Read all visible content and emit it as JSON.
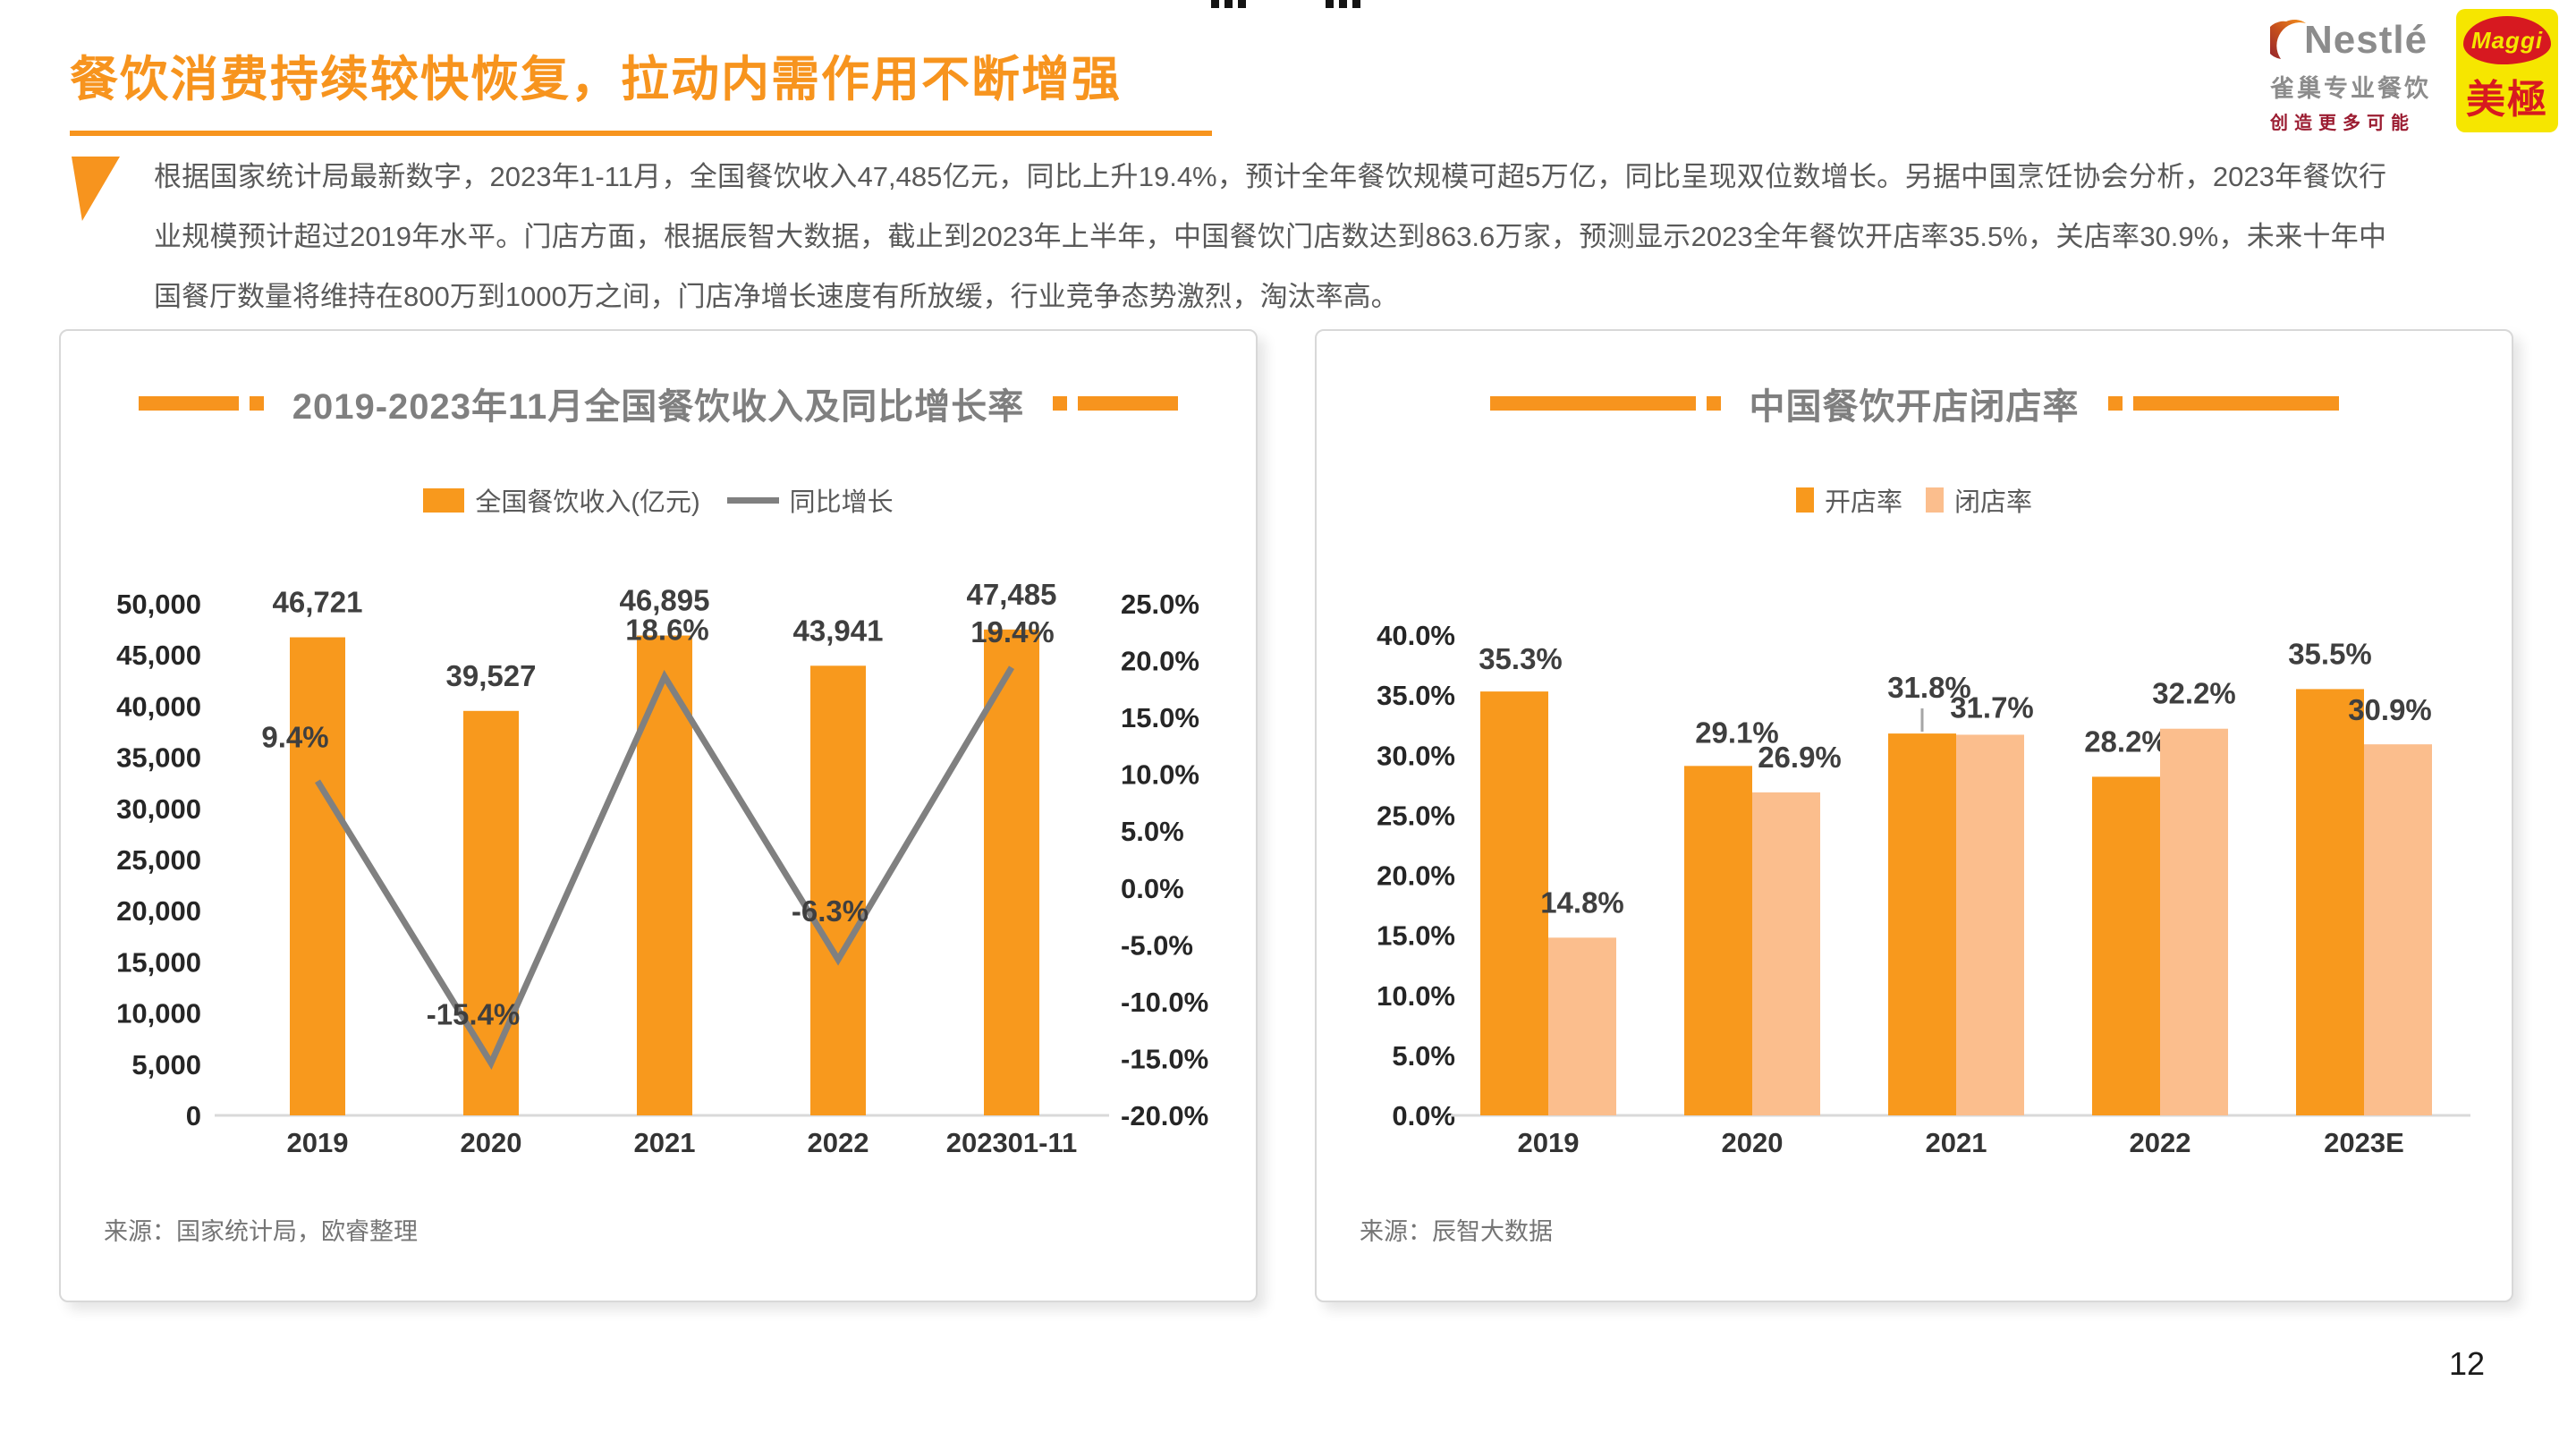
{
  "slide": {
    "title": "餐饮消费持续较快恢复，拉动内需作用不断增强",
    "body_text": "根据国家统计局最新数字，2023年1-11月，全国餐饮收入47,485亿元，同比上升19.4%，预计全年餐饮规模可超5万亿，同比呈现双位数增长。另据中国烹饪协会分析，2023年餐饮行业规模预计超过2019年水平。门店方面，根据辰智大数据，截止到2023年上半年，中国餐饮门店数达到863.6万家，预测显示2023全年餐饮开店率35.5%，关店率30.9%，未来十年中国餐厅数量将维持在800万到1000万之间，门店净增长速度有所放缓，行业竞争态势激烈，淘汰率高。",
    "page_number": "12"
  },
  "logos": {
    "nestle": {
      "brand": "Nestlé",
      "subtitle": "雀巢专业餐饮",
      "tagline": "创造更多可能"
    },
    "maggi": {
      "brand": "Maggi",
      "chinese": "美極"
    }
  },
  "colors": {
    "accent_orange": "#F7941E",
    "bar_orange": "#F8991D",
    "bar_light_orange": "#FBBE8D",
    "line_gray": "#808080"
  },
  "chart_data": [
    {
      "type": "combo-bar-line",
      "title": "2019-2023年11月全国餐饮收入及同比增长率",
      "categories": [
        "2019",
        "2020",
        "2021",
        "2022",
        "202301-11"
      ],
      "series": [
        {
          "name": "全国餐饮收入(亿元)",
          "kind": "bar",
          "color": "#F8991D",
          "values": [
            46721,
            39527,
            46895,
            43941,
            47485
          ],
          "labels": [
            "46,721",
            "39,527",
            "46,895",
            "43,941",
            "47,485"
          ]
        },
        {
          "name": "同比增长",
          "kind": "line",
          "color": "#808080",
          "values": [
            9.4,
            -15.4,
            18.6,
            -6.3,
            19.4
          ],
          "labels": [
            "9.4%",
            "-15.4%",
            "18.6%",
            "-6.3%",
            "19.4%"
          ]
        }
      ],
      "left_axis": {
        "min": 0,
        "max": 50000,
        "step": 5000,
        "ticks": [
          "50,000",
          "45,000",
          "40,000",
          "35,000",
          "30,000",
          "25,000",
          "20,000",
          "15,000",
          "10,000",
          "5,000",
          "0"
        ]
      },
      "right_axis": {
        "min": -20,
        "max": 25,
        "step": 5,
        "ticks": [
          "25.0%",
          "20.0%",
          "15.0%",
          "10.0%",
          "5.0%",
          "0.0%",
          "-5.0%",
          "-10.0%",
          "-15.0%",
          "-20.0%"
        ]
      },
      "legend_position": "top",
      "grid": "off",
      "source": "来源：国家统计局，欧睿整理"
    },
    {
      "type": "bar",
      "title": "中国餐饮开店闭店率",
      "categories": [
        "2019",
        "2020",
        "2021",
        "2022",
        "2023E"
      ],
      "series": [
        {
          "name": "开店率",
          "color": "#F8991D",
          "values": [
            35.3,
            29.1,
            31.8,
            28.2,
            35.5
          ],
          "labels": [
            "35.3%",
            "29.1%",
            "31.8%",
            "28.2%",
            "35.5%"
          ]
        },
        {
          "name": "闭店率",
          "color": "#FBBE8D",
          "values": [
            14.8,
            26.9,
            31.7,
            32.2,
            30.9
          ],
          "labels": [
            "14.8%",
            "26.9%",
            "31.7%",
            "32.2%",
            "30.9%"
          ]
        }
      ],
      "y_axis": {
        "min": 0,
        "max": 40,
        "step": 5,
        "ticks": [
          "40.0%",
          "35.0%",
          "30.0%",
          "25.0%",
          "20.0%",
          "15.0%",
          "10.0%",
          "5.0%",
          "0.0%"
        ]
      },
      "legend_position": "top",
      "grid": "off",
      "source": "来源：辰智大数据"
    }
  ]
}
